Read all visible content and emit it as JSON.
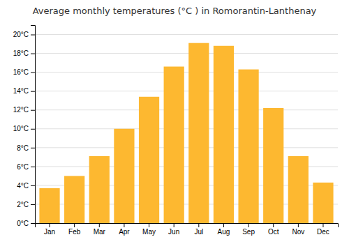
{
  "chart_data": {
    "type": "bar",
    "title": "Average monthly temperatures (°C ) in Romorantin-Lanthenay",
    "categories": [
      "Jan",
      "Feb",
      "Mar",
      "Apr",
      "May",
      "Jun",
      "Jul",
      "Aug",
      "Sep",
      "Oct",
      "Nov",
      "Dec"
    ],
    "values": [
      3.7,
      5.0,
      7.1,
      10.0,
      13.4,
      16.6,
      19.1,
      18.8,
      16.3,
      12.2,
      7.1,
      4.3
    ],
    "color": "#FDB830",
    "ylim": [
      0,
      21
    ],
    "yticks": [
      {
        "value": 0,
        "label": "0°C"
      },
      {
        "value": 2,
        "label": "2°C"
      },
      {
        "value": 4,
        "label": "4°C"
      },
      {
        "value": 6,
        "label": "6°C"
      },
      {
        "value": 8,
        "label": "8°C"
      },
      {
        "value": 10,
        "label": "10°C"
      },
      {
        "value": 12,
        "label": "12°C"
      },
      {
        "value": 14,
        "label": "14°C"
      },
      {
        "value": 16,
        "label": "16°C"
      },
      {
        "value": 18,
        "label": "18°C"
      },
      {
        "value": 20,
        "label": "20°C"
      }
    ],
    "grid": true
  }
}
